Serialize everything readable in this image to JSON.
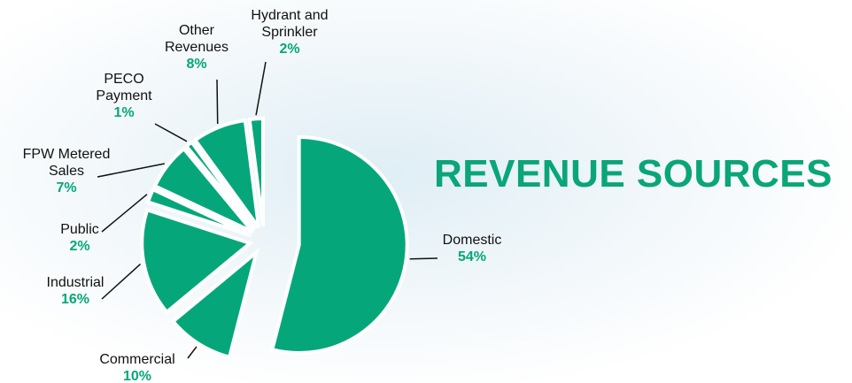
{
  "chart_data": {
    "type": "pie",
    "title": "REVENUE SOURCES",
    "categories": [
      "Domestic",
      "Commercial",
      "Industrial",
      "Public",
      "FPW Metered Sales",
      "PECO Payment",
      "Other Revenues",
      "Hydrant and Sprinkler"
    ],
    "values": [
      54,
      10,
      16,
      2,
      7,
      1,
      8,
      2
    ],
    "value_labels": [
      "54%",
      "10%",
      "16%",
      "2%",
      "7%",
      "1%",
      "8%",
      "2%"
    ],
    "color": "#05a77a"
  }
}
